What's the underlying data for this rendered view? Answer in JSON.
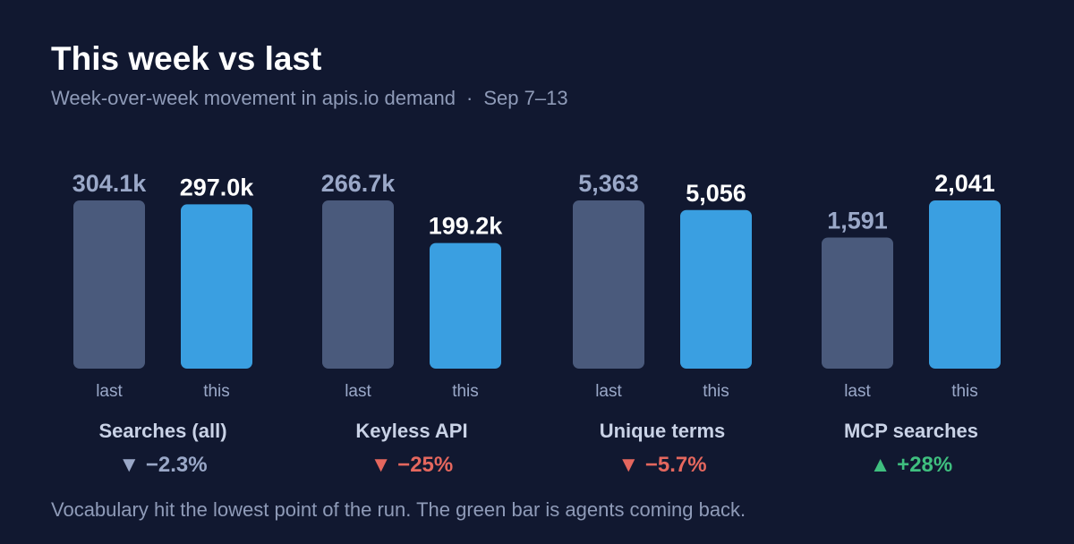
{
  "header": {
    "title": "This week vs last",
    "subtitle": "Week-over-week movement in apis.io demand",
    "date_range": "Sep 7–13",
    "separator": "·"
  },
  "footnote": "Vocabulary hit the lowest point of the run. The green bar is agents coming back.",
  "colors": {
    "background": "#111830",
    "last_bar": "#4a5a7c",
    "this_bar": "#3a9fe1",
    "last_value_text": "#9aa8c8",
    "this_value_text": "#ffffff",
    "axis_label": "#9aa8c8",
    "metric_label": "#c9d2e6",
    "down_neutral": "#9aa8c8",
    "down_bad": "#e5675e",
    "up_good": "#3fbf7f"
  },
  "chart_data": {
    "type": "bar",
    "period_labels": [
      "last",
      "this"
    ],
    "groups": [
      {
        "name": "Searches (all)",
        "values": [
          304100,
          297000
        ],
        "value_labels": [
          "304.1k",
          "297.0k"
        ],
        "change": {
          "arrow": "▼",
          "text": "−2.3%",
          "direction": "down",
          "tone": "neutral"
        }
      },
      {
        "name": "Keyless API",
        "values": [
          266700,
          199200
        ],
        "value_labels": [
          "266.7k",
          "199.2k"
        ],
        "change": {
          "arrow": "▼",
          "text": "−25%",
          "direction": "down",
          "tone": "bad"
        }
      },
      {
        "name": "Unique terms",
        "values": [
          5363,
          5056
        ],
        "value_labels": [
          "5,363",
          "5,056"
        ],
        "change": {
          "arrow": "▼",
          "text": "−5.7%",
          "direction": "down",
          "tone": "bad"
        }
      },
      {
        "name": "MCP searches",
        "values": [
          1591,
          2041
        ],
        "value_labels": [
          "1,591",
          "2,041"
        ],
        "change": {
          "arrow": "▲",
          "text": "+28%",
          "direction": "up",
          "tone": "good"
        }
      }
    ]
  }
}
